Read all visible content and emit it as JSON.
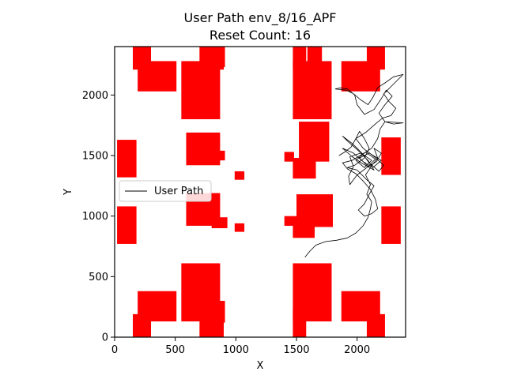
{
  "chart_data": {
    "type": "line",
    "title": "User Path env_8/16_APF",
    "subtitle": "Reset Count: 16",
    "xlabel": "X",
    "ylabel": "Y",
    "xlim": [
      0,
      2400
    ],
    "ylim": [
      0,
      2400
    ],
    "xticks": [
      0,
      500,
      1000,
      1500,
      2000
    ],
    "yticks": [
      0,
      500,
      1000,
      1500,
      2000
    ],
    "grid": false,
    "legend": {
      "placement": "center-left",
      "entries": [
        "User Path"
      ]
    },
    "colors": {
      "obstacle": "#ff0000",
      "path": "#000000",
      "axes": "#000000"
    },
    "obstacles": [
      [
        150,
        2210,
        150,
        190
      ],
      [
        190,
        2030,
        320,
        250
      ],
      [
        550,
        1800,
        320,
        480
      ],
      [
        700,
        2210,
        200,
        230
      ],
      [
        750,
        2230,
        160,
        180
      ],
      [
        1470,
        1800,
        320,
        480
      ],
      [
        1470,
        2210,
        110,
        230
      ],
      [
        1590,
        2230,
        120,
        180
      ],
      [
        1870,
        2030,
        320,
        250
      ],
      [
        2080,
        2210,
        150,
        190
      ],
      [
        20,
        1320,
        160,
        310
      ],
      [
        590,
        1420,
        280,
        270
      ],
      [
        810,
        1460,
        100,
        80
      ],
      [
        990,
        1300,
        80,
        70
      ],
      [
        1400,
        1450,
        80,
        80
      ],
      [
        1470,
        1310,
        190,
        170
      ],
      [
        1520,
        1450,
        250,
        330
      ],
      [
        2200,
        1340,
        160,
        310
      ],
      [
        20,
        770,
        160,
        310
      ],
      [
        590,
        920,
        280,
        270
      ],
      [
        800,
        900,
        130,
        90
      ],
      [
        990,
        870,
        80,
        70
      ],
      [
        1400,
        920,
        100,
        80
      ],
      [
        1470,
        820,
        180,
        170
      ],
      [
        1500,
        910,
        300,
        270
      ],
      [
        2200,
        770,
        160,
        310
      ],
      [
        150,
        0,
        150,
        190
      ],
      [
        190,
        130,
        320,
        250
      ],
      [
        550,
        130,
        320,
        480
      ],
      [
        700,
        0,
        200,
        230
      ],
      [
        750,
        120,
        160,
        180
      ],
      [
        1470,
        130,
        320,
        480
      ],
      [
        1470,
        0,
        110,
        230
      ],
      [
        1590,
        140,
        120,
        180
      ],
      [
        1870,
        130,
        320,
        250
      ],
      [
        2080,
        0,
        150,
        190
      ]
    ],
    "series": [
      {
        "name": "User Path",
        "points": [
          [
            1570,
            660
          ],
          [
            1610,
            710
          ],
          [
            1660,
            760
          ],
          [
            1740,
            790
          ],
          [
            1830,
            800
          ],
          [
            1920,
            820
          ],
          [
            1990,
            860
          ],
          [
            2050,
            920
          ],
          [
            2090,
            990
          ],
          [
            2110,
            1060
          ],
          [
            2120,
            1120
          ],
          [
            2080,
            1180
          ],
          [
            2110,
            1260
          ],
          [
            2070,
            1340
          ],
          [
            2130,
            1430
          ],
          [
            2170,
            1480
          ],
          [
            2140,
            1560
          ],
          [
            2200,
            1520
          ],
          [
            2160,
            1450
          ],
          [
            2080,
            1400
          ],
          [
            2000,
            1340
          ],
          [
            1940,
            1260
          ],
          [
            1930,
            1330
          ],
          [
            1970,
            1410
          ],
          [
            1940,
            1490
          ],
          [
            2030,
            1520
          ],
          [
            2120,
            1460
          ],
          [
            2060,
            1400
          ],
          [
            1990,
            1460
          ],
          [
            2070,
            1530
          ],
          [
            2150,
            1470
          ],
          [
            2090,
            1410
          ],
          [
            2020,
            1480
          ],
          [
            2100,
            1520
          ],
          [
            2200,
            1460
          ],
          [
            2130,
            1400
          ],
          [
            2050,
            1450
          ],
          [
            1970,
            1520
          ],
          [
            1880,
            1560
          ],
          [
            1960,
            1490
          ],
          [
            2050,
            1430
          ],
          [
            2140,
            1380
          ],
          [
            2090,
            1460
          ],
          [
            2000,
            1550
          ],
          [
            1920,
            1620
          ],
          [
            1880,
            1660
          ],
          [
            1960,
            1600
          ],
          [
            2040,
            1520
          ],
          [
            2100,
            1440
          ],
          [
            2180,
            1370
          ],
          [
            2220,
            1420
          ],
          [
            2130,
            1500
          ],
          [
            2050,
            1560
          ],
          [
            1990,
            1640
          ],
          [
            2020,
            1700
          ],
          [
            2060,
            1640
          ],
          [
            2100,
            1560
          ],
          [
            2060,
            1480
          ],
          [
            1980,
            1420
          ],
          [
            1920,
            1400
          ],
          [
            2000,
            1380
          ],
          [
            2080,
            1300
          ],
          [
            2140,
            1250
          ],
          [
            2100,
            1180
          ],
          [
            2060,
            1100
          ],
          [
            2010,
            1050
          ],
          [
            2060,
            1000
          ],
          [
            2120,
            1020
          ],
          [
            2170,
            1060
          ],
          [
            2150,
            1140
          ],
          [
            2110,
            1220
          ],
          [
            2050,
            1290
          ],
          [
            1990,
            1350
          ],
          [
            1920,
            1390
          ],
          [
            1880,
            1440
          ],
          [
            1960,
            1460
          ],
          [
            2040,
            1510
          ],
          [
            2120,
            1560
          ],
          [
            2170,
            1640
          ],
          [
            2190,
            1720
          ],
          [
            2230,
            1780
          ],
          [
            2300,
            1760
          ],
          [
            2380,
            1770
          ],
          [
            2230,
            1780
          ],
          [
            2180,
            1850
          ],
          [
            2230,
            1920
          ],
          [
            2290,
            1990
          ],
          [
            2240,
            2040
          ],
          [
            2200,
            1970
          ],
          [
            2140,
            1880
          ],
          [
            2060,
            1840
          ],
          [
            2000,
            1920
          ],
          [
            1980,
            2000
          ],
          [
            1920,
            2050
          ],
          [
            1860,
            2060
          ],
          [
            1820,
            2050
          ],
          [
            1910,
            2040
          ],
          [
            1970,
            2010
          ],
          [
            2030,
            1960
          ],
          [
            2090,
            1920
          ],
          [
            2130,
            1980
          ],
          [
            2170,
            2060
          ],
          [
            2230,
            2100
          ],
          [
            2300,
            2150
          ],
          [
            2380,
            2170
          ],
          [
            2330,
            2120
          ],
          [
            2270,
            2060
          ],
          [
            2220,
            2010
          ],
          [
            2260,
            1950
          ],
          [
            2320,
            1890
          ],
          [
            2280,
            1830
          ],
          [
            2210,
            1810
          ],
          [
            2150,
            1760
          ],
          [
            2070,
            1690
          ],
          [
            1990,
            1640
          ],
          [
            1950,
            1570
          ],
          [
            1900,
            1530
          ],
          [
            1850,
            1500
          ]
        ]
      }
    ]
  }
}
